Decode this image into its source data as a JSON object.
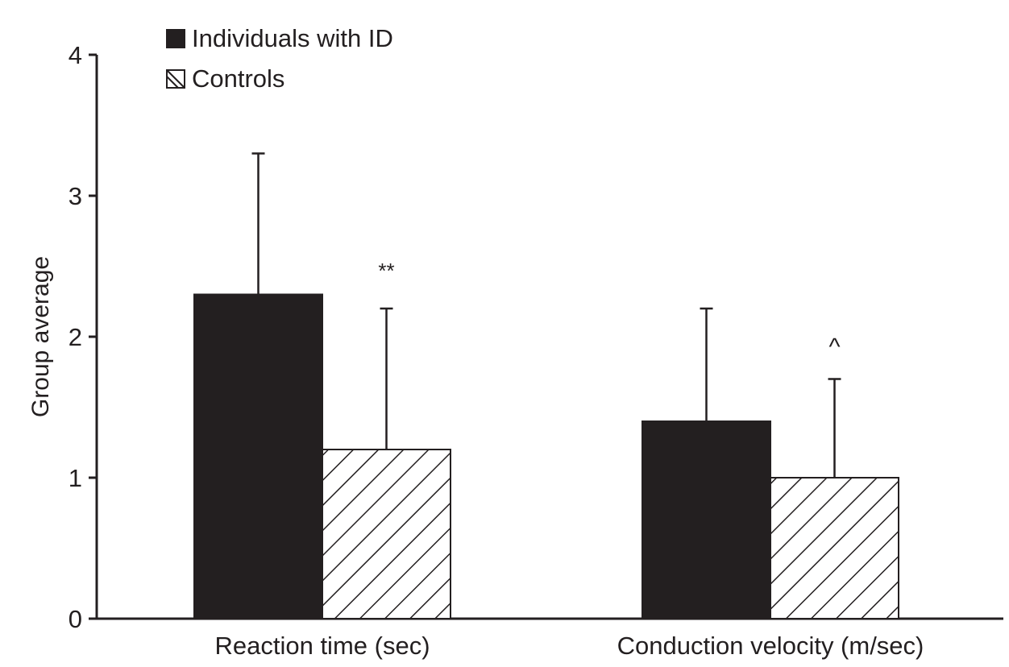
{
  "chart_data": {
    "type": "bar",
    "title": "",
    "xlabel": "",
    "ylabel": "Group average",
    "ylim": [
      0,
      4
    ],
    "yticks": [
      0,
      1,
      2,
      3,
      4
    ],
    "ytick_labels": [
      "0",
      "1",
      "2",
      "3",
      "4"
    ],
    "grid": false,
    "legend_position": "top-left",
    "categories": [
      "Reaction time (sec)",
      "Conduction velocity (m/sec)"
    ],
    "series": [
      {
        "name": "Individuals with ID",
        "fill": "solid",
        "color": "#231f20",
        "values": [
          2.3,
          1.4
        ],
        "error_upper": [
          3.3,
          2.2
        ]
      },
      {
        "name": "Controls",
        "fill": "hatched",
        "color": "#231f20",
        "values": [
          1.2,
          1.0
        ],
        "error_upper": [
          2.2,
          1.7
        ]
      }
    ],
    "annotations": [
      {
        "text": "**",
        "category": 0,
        "series": 1
      },
      {
        "text": "^",
        "category": 1,
        "series": 1
      }
    ]
  }
}
